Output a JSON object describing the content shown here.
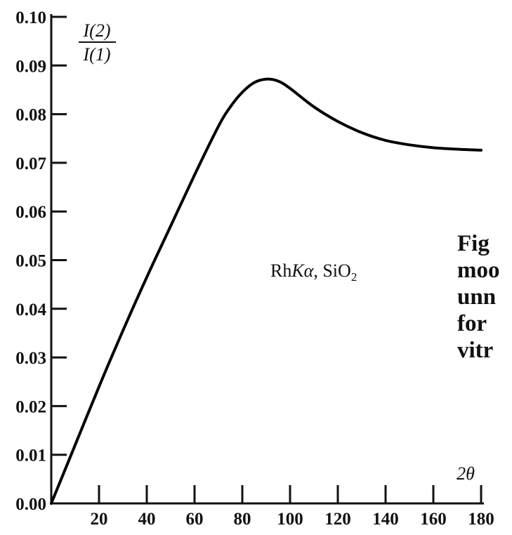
{
  "chart_data": {
    "type": "line",
    "title": "",
    "ylabel": {
      "numerator": "I(2)",
      "denominator": "I(1)"
    },
    "xlabel": "2θ",
    "annotation": {
      "element": "Rh",
      "line": "Kα",
      "separator": ", ",
      "compound": "SiO",
      "subscript": "2"
    },
    "xlim": [
      0,
      180
    ],
    "ylim": [
      0.0,
      0.1
    ],
    "x_ticks": [
      20,
      40,
      60,
      80,
      100,
      120,
      140,
      160,
      180
    ],
    "x_tick_labels": [
      "20",
      "40",
      "60",
      "80",
      "100",
      "120",
      "140",
      "160",
      "180"
    ],
    "y_ticks": [
      0.0,
      0.01,
      0.02,
      0.03,
      0.04,
      0.05,
      0.06,
      0.07,
      0.08,
      0.09,
      0.1
    ],
    "y_tick_labels": [
      "0.00",
      "0.01",
      "0.02",
      "0.03",
      "0.04",
      "0.05",
      "0.06",
      "0.07",
      "0.08",
      "0.09",
      "0.10"
    ],
    "grid": false,
    "series": [
      {
        "color": "#000000",
        "x": [
          0,
          10,
          20,
          30,
          40,
          50,
          60,
          70,
          75,
          80,
          85,
          90,
          95,
          100,
          110,
          120,
          130,
          140,
          150,
          160,
          170,
          180
        ],
        "y": [
          0.0,
          0.012,
          0.024,
          0.0355,
          0.0465,
          0.057,
          0.0675,
          0.0775,
          0.0815,
          0.0845,
          0.0865,
          0.0872,
          0.0868,
          0.0853,
          0.0815,
          0.0785,
          0.0762,
          0.0746,
          0.0737,
          0.0731,
          0.0728,
          0.0726
        ]
      }
    ]
  },
  "caption": {
    "lines": [
      "Fig",
      "moo",
      "unn",
      "for",
      "vitr"
    ]
  }
}
